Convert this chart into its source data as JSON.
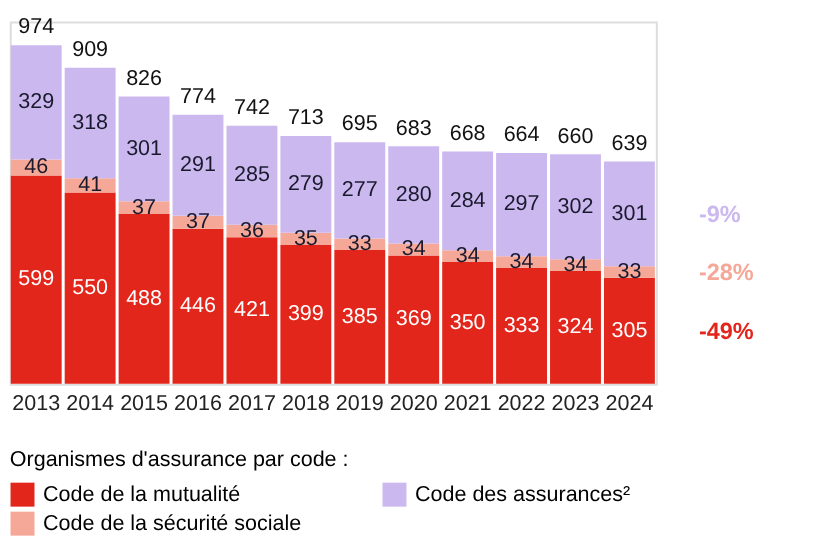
{
  "chart_data": {
    "type": "bar",
    "stacked": true,
    "data_labels": true,
    "legend": "bottom",
    "legend_title": "Organismes d'assurance par code :",
    "categories": [
      "2013",
      "2014",
      "2015",
      "2016",
      "2017",
      "2018",
      "2019",
      "2020",
      "2021",
      "2022",
      "2023",
      "2024"
    ],
    "series": [
      {
        "name": "Code de la mutualité",
        "color": "#e3261b",
        "values": [
          599,
          550,
          488,
          446,
          421,
          399,
          385,
          369,
          350,
          333,
          324,
          305
        ]
      },
      {
        "name": "Code de la sécurité sociale",
        "color": "#f5a898",
        "values": [
          46,
          41,
          37,
          37,
          36,
          35,
          33,
          34,
          34,
          34,
          34,
          33
        ]
      },
      {
        "name": "Code des assurances²",
        "color": "#cbb8ef",
        "values": [
          329,
          318,
          301,
          291,
          285,
          279,
          277,
          280,
          284,
          297,
          302,
          301
        ]
      }
    ],
    "totals": [
      "974",
      "909",
      "826",
      "774",
      "742",
      "713",
      "695",
      "683",
      "668",
      "664",
      "660",
      "639"
    ],
    "annotations": [
      "-49%",
      "-28%",
      "-9%"
    ]
  }
}
